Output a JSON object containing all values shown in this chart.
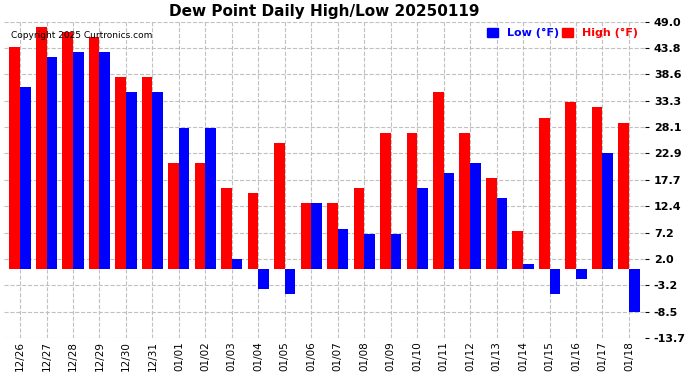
{
  "title": "Dew Point Daily High/Low 20250119",
  "copyright": "Copyright 2025 Curtronics.com",
  "legend_low": "Low (°F)",
  "legend_high": "High (°F)",
  "dates": [
    "12/26",
    "12/27",
    "12/28",
    "12/29",
    "12/30",
    "12/31",
    "01/01",
    "01/02",
    "01/03",
    "01/04",
    "01/05",
    "01/06",
    "01/07",
    "01/08",
    "01/09",
    "01/10",
    "01/11",
    "01/12",
    "01/13",
    "01/14",
    "01/15",
    "01/16",
    "01/17",
    "01/18"
  ],
  "high": [
    44.0,
    48.0,
    47.0,
    46.0,
    38.0,
    38.0,
    21.0,
    21.0,
    16.0,
    15.0,
    25.0,
    13.0,
    13.0,
    16.0,
    27.0,
    27.0,
    35.0,
    27.0,
    18.0,
    7.5,
    30.0,
    33.0,
    32.0,
    29.0
  ],
  "low": [
    36.0,
    42.0,
    43.0,
    43.0,
    35.0,
    35.0,
    28.0,
    28.0,
    2.0,
    -4.0,
    -5.0,
    13.0,
    8.0,
    7.0,
    7.0,
    16.0,
    19.0,
    21.0,
    14.0,
    1.0,
    -5.0,
    -2.0,
    23.0,
    -8.5
  ],
  "bar_color_high": "#ff0000",
  "bar_color_low": "#0000ff",
  "background_color": "#ffffff",
  "grid_color": "#c0c0c0",
  "yticks": [
    49.0,
    43.8,
    38.6,
    33.3,
    28.1,
    22.9,
    17.7,
    12.4,
    7.2,
    2.0,
    -3.2,
    -8.5,
    -13.7
  ],
  "ymin": -13.7,
  "ymax": 49.0,
  "figsize": [
    6.9,
    3.75
  ],
  "dpi": 100
}
